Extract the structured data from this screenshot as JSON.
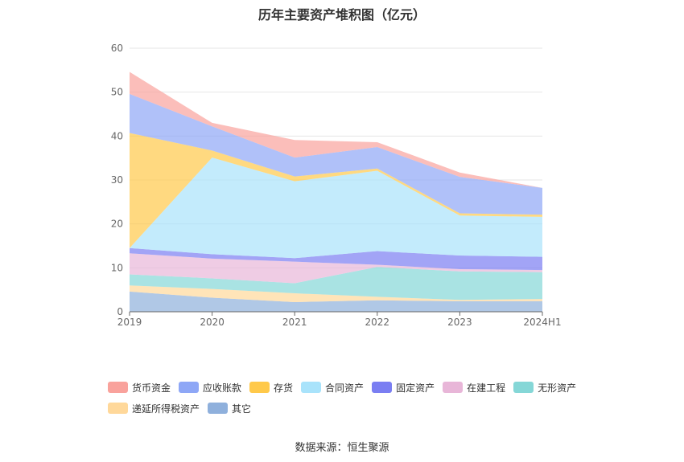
{
  "chart_data": {
    "type": "area",
    "stacked": true,
    "title": "历年主要资产堆积图（亿元）",
    "categories": [
      "2019",
      "2020",
      "2021",
      "2022",
      "2023",
      "2024H1"
    ],
    "ylim": [
      0,
      60
    ],
    "yticks": [
      "0",
      "10",
      "20",
      "30",
      "40",
      "50",
      "60"
    ],
    "xlabel": "",
    "ylabel": "",
    "grid": true,
    "legend_position": "bottom",
    "series": [
      {
        "name": "其它",
        "color": "#8fb0dc",
        "values": [
          4.6,
          3.2,
          2.2,
          2.6,
          2.4,
          2.4
        ]
      },
      {
        "name": "递延所得税资产",
        "color": "#ffd89a",
        "values": [
          1.4,
          2.0,
          2.0,
          0.8,
          0.3,
          0.5
        ]
      },
      {
        "name": "无形资产",
        "color": "#85d7d7",
        "values": [
          2.5,
          2.4,
          2.3,
          6.8,
          6.5,
          6.1
        ]
      },
      {
        "name": "在建工程",
        "color": "#e8b6d8",
        "values": [
          4.8,
          4.5,
          4.9,
          0.5,
          0.5,
          0.5
        ]
      },
      {
        "name": "固定资产",
        "color": "#7a7ef2",
        "values": [
          1.2,
          1.0,
          0.8,
          3.1,
          3.1,
          3.0
        ]
      },
      {
        "name": "合同资产",
        "color": "#a9e3fb",
        "values": [
          0.0,
          22.0,
          17.5,
          18.3,
          9.1,
          9.1
        ]
      },
      {
        "name": "存货",
        "color": "#ffc94a",
        "values": [
          26.2,
          1.6,
          1.1,
          0.5,
          0.5,
          0.5
        ]
      },
      {
        "name": "应收账款",
        "color": "#8ea7f6",
        "values": [
          8.9,
          5.5,
          4.3,
          4.9,
          8.3,
          6.1
        ]
      },
      {
        "name": "货币资金",
        "color": "#f9a29c",
        "values": [
          5.0,
          0.8,
          4.0,
          1.1,
          1.0,
          0.0
        ]
      }
    ],
    "legend_order": [
      "货币资金",
      "应收账款",
      "存货",
      "合同资产",
      "固定资产",
      "在建工程",
      "无形资产",
      "递延所得税资产",
      "其它"
    ]
  },
  "source_label": "数据来源：恒生聚源"
}
